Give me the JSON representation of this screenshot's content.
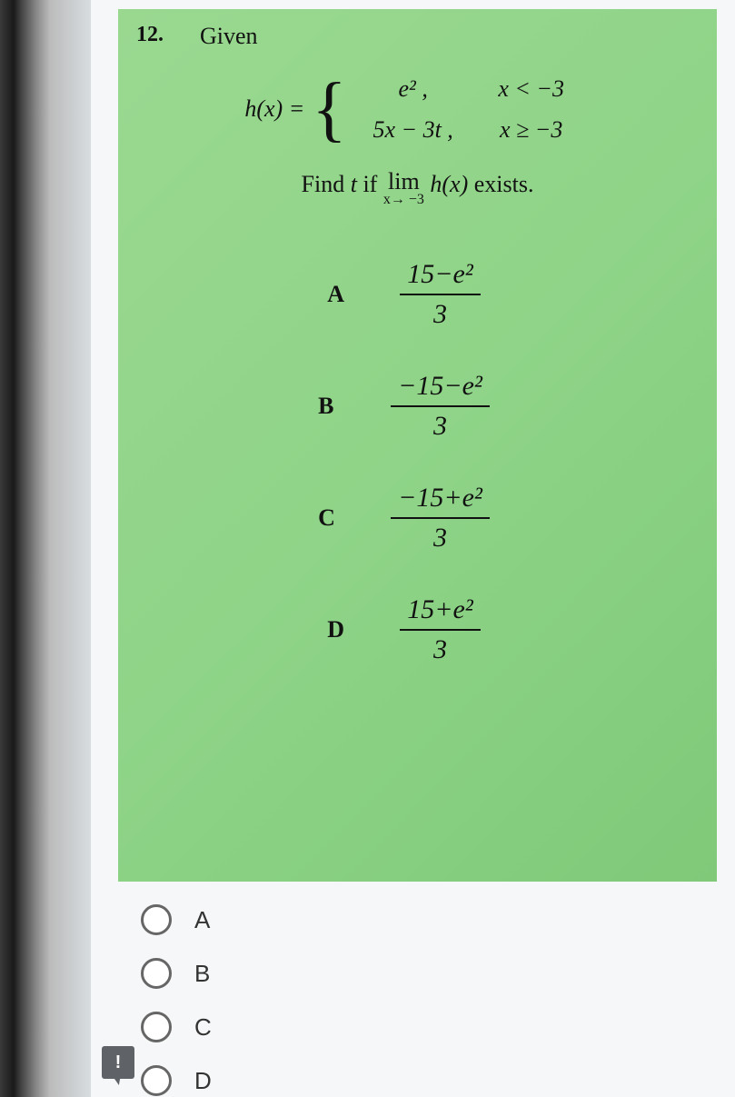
{
  "question": {
    "number": "12.",
    "given_label": "Given",
    "function_lhs": "h(x) =",
    "case1_expr": "e²   ,",
    "case1_cond": "x < −3",
    "case2_expr": "5x − 3t  ,",
    "case2_cond": "x ≥ −3",
    "find_pre": "Find ",
    "find_var": "t",
    "find_mid": " if ",
    "lim_top": "lim",
    "lim_bot": "x→ −3",
    "find_func": " h(x) ",
    "find_post": "exists."
  },
  "options": {
    "A": {
      "letter": "A",
      "num": "15−e²",
      "den": "3"
    },
    "B": {
      "letter": "B",
      "num": "−15−e²",
      "den": "3"
    },
    "C": {
      "letter": "C",
      "num": "−15+e²",
      "den": "3"
    },
    "D": {
      "letter": "D",
      "num": "15+e²",
      "den": "3"
    }
  },
  "answers": {
    "a": "A",
    "b": "B",
    "c": "C",
    "d": "D"
  },
  "feedback": "!",
  "styling": {
    "question_bg": "#8fd48a",
    "page_bg": "#f5f7f8",
    "text_color": "#111",
    "radio_border": "#666",
    "feedback_bg": "#5f6368",
    "body_width": 809,
    "body_height": 1207,
    "font_family": "Times New Roman",
    "q_font_size": 26,
    "frac_font_size": 30
  }
}
